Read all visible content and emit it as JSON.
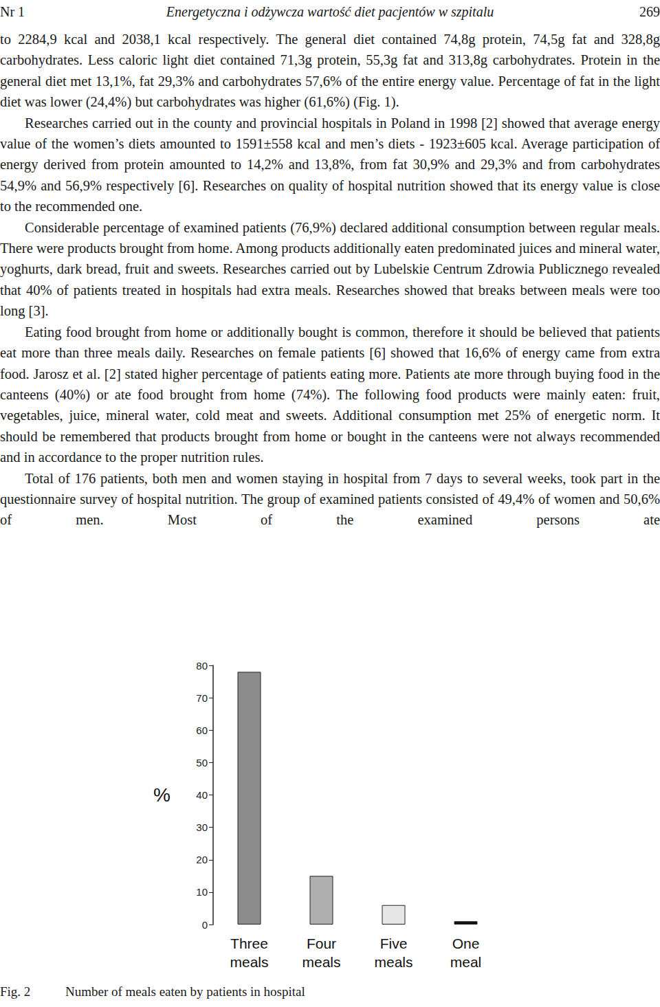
{
  "header": {
    "left": "Nr 1",
    "center": "Energetyczna i odżywcza wartość diet pacjentów w szpitalu",
    "right": "269"
  },
  "paragraphs": [
    "to 2284,9 kcal and 2038,1 kcal respectively. The general diet contained 74,8g protein, 74,5g fat and 328,8g carbohydrates. Less caloric light diet contained 71,3g protein, 55,3g fat and 313,8g carbohydrates. Protein in the general diet met 13,1%, fat 29,3% and carbohydrates 57,6% of the entire energy value. Percentage of fat in the light diet was lower (24,4%) but carbohydrates was higher (61,6%) (Fig. 1).",
    "Researches carried out in the county and provincial hospitals in Poland in 1998 [2] showed that average energy value of the women’s diets amounted to 1591±558 kcal and men’s diets - 1923±605 kcal. Average participation of energy derived from protein amounted to 14,2% and 13,8%, from fat 30,9% and 29,3% and from carbohydrates 54,9% and 56,9% respectively [6]. Researches on quality of hospital nutrition showed that its energy value is close to the recommended one.",
    "Considerable percentage of examined patients (76,9%) declared additional consumption between regular meals. There were products brought from home. Among products additionally eaten predominated juices and mineral water, yoghurts, dark bread, fruit and sweets. Researches carried out by Lubelskie Centrum Zdrowia Publicznego revealed that 40% of patients treated in hospitals had extra meals. Researches showed that breaks between meals were too long [3].",
    "Eating food brought from home or additionally bought is common, therefore it should be believed that patients eat more than three meals daily. Researches on female patients [6] showed that 16,6% of energy came from extra food. Jarosz et al. [2] stated higher percentage of patients eating more. Patients ate more through buying food in the canteens (40%) or ate food brought from home (74%). The following food products were mainly eaten: fruit, vegetables, juice, mineral water, cold meat and sweets. Additional consumption met 25% of energetic norm. It should be remembered that products brought from home or bought in the canteens were not always recommended and in accordance to the proper nutrition rules.",
    "Total of 176 patients, both men and women staying in hospital from 7 days to several weeks, took part in the questionnaire survey of hospital nutrition. The group of examined patients consisted of 49,4% of women and 50,6% of men. Most of the examined persons ate"
  ],
  "chart_data": {
    "type": "bar",
    "ylabel": "%",
    "categories": [
      "Three meals",
      "Four meals",
      "Five meals",
      "One meal"
    ],
    "values": [
      78,
      15,
      6,
      1
    ],
    "colors": [
      "#8c8c8c",
      "#b0b0b0",
      "#e6e6e6",
      "#111111"
    ],
    "ylim": [
      0,
      80
    ],
    "yticks": [
      0,
      10,
      20,
      30,
      40,
      50,
      60,
      70,
      80
    ],
    "grid": false
  },
  "caption": {
    "figure": "Fig. 2",
    "text": "Number of meals eaten by patients in hospital"
  }
}
